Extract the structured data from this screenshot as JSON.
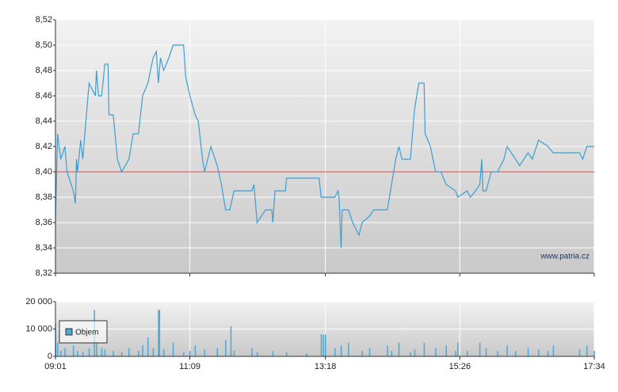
{
  "chart_data": [
    {
      "type": "line",
      "watermark": "www.patria.cz",
      "color": "#3d9ed3",
      "reference": 8.4,
      "reference_color": "#d9534f",
      "xlim": [
        "09:01",
        "17:34"
      ],
      "ylim": [
        8.32,
        8.52
      ],
      "yticks": [
        {
          "value": 8.32,
          "label": "8,32"
        },
        {
          "value": 8.34,
          "label": "8,34"
        },
        {
          "value": 8.36,
          "label": "8,36"
        },
        {
          "value": 8.38,
          "label": "8,38"
        },
        {
          "value": 8.4,
          "label": "8,40"
        },
        {
          "value": 8.42,
          "label": "8,42"
        },
        {
          "value": 8.44,
          "label": "8,44"
        },
        {
          "value": 8.46,
          "label": "8,46"
        },
        {
          "value": 8.48,
          "label": "8,48"
        },
        {
          "value": 8.5,
          "label": "8,50"
        },
        {
          "value": 8.52,
          "label": "8,52"
        }
      ],
      "grid": true,
      "x": [
        "09:01",
        "09:03",
        "09:06",
        "09:10",
        "09:12",
        "09:18",
        "09:20",
        "09:21",
        "09:22",
        "09:25",
        "09:27",
        "09:33",
        "09:39",
        "09:40",
        "09:42",
        "09:45",
        "09:48",
        "09:51",
        "09:52",
        "09:56",
        "10:00",
        "10:04",
        "10:11",
        "10:15",
        "10:20",
        "10:24",
        "10:29",
        "10:34",
        "10:37",
        "10:39",
        "10:41",
        "10:44",
        "10:49",
        "10:53",
        "11:03",
        "11:05",
        "11:09",
        "11:14",
        "11:17",
        "11:21",
        "11:23",
        "11:29",
        "11:35",
        "11:39",
        "11:43",
        "11:47",
        "11:51",
        "12:08",
        "12:10",
        "12:13",
        "12:21",
        "12:27",
        "12:28",
        "12:30",
        "12:40",
        "12:41",
        "13:12",
        "13:14",
        "13:27",
        "13:30",
        "13:31",
        "13:33",
        "13:34",
        "13:40",
        "13:44",
        "13:50",
        "13:53",
        "14:00",
        "14:04",
        "14:17",
        "14:21",
        "14:25",
        "14:28",
        "14:31",
        "14:39",
        "14:43",
        "14:47",
        "14:52",
        "14:53",
        "14:58",
        "15:03",
        "15:08",
        "15:13",
        "15:22",
        "15:24",
        "15:33",
        "15:36",
        "15:41",
        "15:45",
        "15:47",
        "15:48",
        "15:51",
        "15:56",
        "16:02",
        "16:08",
        "16:11",
        "16:19",
        "16:23",
        "16:31",
        "16:35",
        "16:41",
        "16:50",
        "16:55",
        "17:20",
        "17:23",
        "17:27",
        "17:34"
      ],
      "values": [
        8.36,
        8.43,
        8.41,
        8.42,
        8.4,
        8.385,
        8.375,
        8.41,
        8.4,
        8.425,
        8.41,
        8.47,
        8.46,
        8.48,
        8.46,
        8.46,
        8.485,
        8.485,
        8.445,
        8.445,
        8.41,
        8.4,
        8.41,
        8.43,
        8.43,
        8.46,
        8.47,
        8.49,
        8.495,
        8.47,
        8.49,
        8.48,
        8.49,
        8.5,
        8.5,
        8.475,
        8.46,
        8.445,
        8.44,
        8.41,
        8.4,
        8.42,
        8.405,
        8.39,
        8.37,
        8.37,
        8.385,
        8.385,
        8.39,
        8.36,
        8.37,
        8.37,
        8.36,
        8.385,
        8.385,
        8.395,
        8.395,
        8.38,
        8.38,
        8.385,
        8.38,
        8.34,
        8.37,
        8.37,
        8.36,
        8.35,
        8.36,
        8.365,
        8.37,
        8.37,
        8.39,
        8.41,
        8.42,
        8.41,
        8.41,
        8.45,
        8.47,
        8.47,
        8.43,
        8.42,
        8.4,
        8.4,
        8.39,
        8.385,
        8.38,
        8.385,
        8.38,
        8.385,
        8.39,
        8.41,
        8.385,
        8.385,
        8.4,
        8.4,
        8.41,
        8.42,
        8.41,
        8.405,
        8.415,
        8.41,
        8.425,
        8.42,
        8.415,
        8.415,
        8.41,
        8.42,
        8.42
      ]
    },
    {
      "type": "bar",
      "xlim": [
        "09:01",
        "17:34"
      ],
      "xticks": [
        "09:01",
        "11:09",
        "13:18",
        "15:26",
        "17:34"
      ],
      "ylim": [
        0,
        20000
      ],
      "yticks": [
        0,
        {
          "value": 10000,
          "label": "10 000"
        },
        {
          "value": 20000,
          "label": "20 000"
        }
      ],
      "grid": true,
      "legend": "top-left",
      "x": [
        "09:01",
        "09:03",
        "09:06",
        "09:10",
        "09:18",
        "09:22",
        "09:27",
        "09:33",
        "09:38",
        "09:40",
        "09:45",
        "09:48",
        "09:56",
        "10:04",
        "10:11",
        "10:20",
        "10:24",
        "10:29",
        "10:34",
        "10:39",
        "10:40",
        "10:44",
        "10:53",
        "11:03",
        "11:09",
        "11:14",
        "11:23",
        "11:35",
        "11:43",
        "11:48",
        "11:51",
        "12:08",
        "12:13",
        "12:28",
        "12:41",
        "13:00",
        "13:14",
        "13:16",
        "13:18",
        "13:27",
        "13:33",
        "13:40",
        "13:53",
        "14:00",
        "14:17",
        "14:21",
        "14:28",
        "14:39",
        "14:43",
        "14:52",
        "15:03",
        "15:13",
        "15:22",
        "15:24",
        "15:33",
        "15:45",
        "15:51",
        "16:02",
        "16:11",
        "16:19",
        "16:31",
        "16:41",
        "16:50",
        "16:55",
        "17:20",
        "17:27",
        "17:34"
      ],
      "series": [
        {
          "name": "Objem",
          "color": "#49a9d9",
          "values": [
            12000,
            5000,
            2000,
            3000,
            4000,
            2000,
            1500,
            3000,
            17000,
            5000,
            3000,
            2500,
            2000,
            1500,
            3000,
            2000,
            4000,
            7000,
            3000,
            17000,
            17000,
            2500,
            5000,
            1500,
            2000,
            4000,
            2500,
            3000,
            6000,
            11000,
            2000,
            3000,
            1500,
            2000,
            1500,
            1000,
            8000,
            8000,
            8000,
            3000,
            4000,
            5000,
            2000,
            3000,
            4000,
            2000,
            5000,
            1500,
            2500,
            5000,
            3000,
            4000,
            2000,
            5000,
            2000,
            5000,
            3000,
            2000,
            4000,
            2000,
            3000,
            2500,
            2000,
            4000,
            2500,
            4000,
            2000
          ]
        }
      ]
    }
  ]
}
